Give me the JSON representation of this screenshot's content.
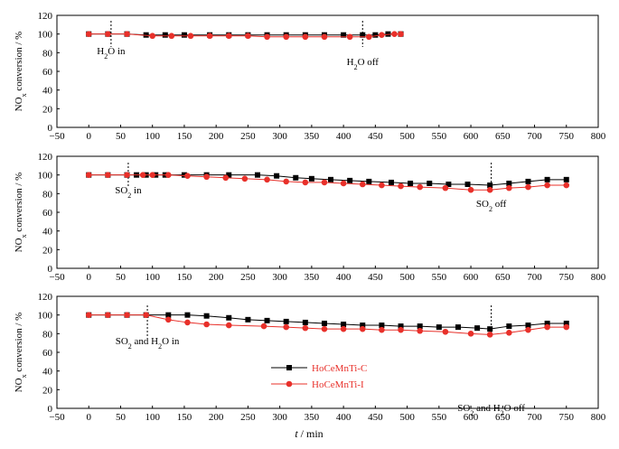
{
  "chart_data": [
    {
      "type": "line",
      "xlim": [
        -50,
        800
      ],
      "ylim": [
        0,
        120
      ],
      "xticks": [
        "−50",
        "0",
        "50",
        "100",
        "150",
        "200",
        "250",
        "300",
        "350",
        "400",
        "450",
        "500",
        "550",
        "600",
        "650",
        "700",
        "750",
        "800"
      ],
      "yticks": [
        "0",
        "20",
        "40",
        "60",
        "80",
        "100",
        "120"
      ],
      "ylabel": {
        "main": "NO",
        "sub": "x",
        "rest": " conversion / %"
      },
      "series": [
        {
          "name": "HoCeMnTi-C",
          "color": "#000000",
          "marker": "square",
          "x": [
            0,
            30,
            60,
            90,
            120,
            150,
            190,
            220,
            250,
            280,
            310,
            340,
            370,
            400,
            430,
            450,
            470,
            490
          ],
          "y": [
            100,
            100,
            100,
            99,
            99,
            99,
            99,
            99,
            99,
            99,
            99,
            99,
            99,
            99,
            99,
            99,
            100,
            100
          ]
        },
        {
          "name": "HoCeMnTi-I",
          "color": "#e8302a",
          "marker": "circle",
          "x": [
            0,
            30,
            60,
            100,
            130,
            160,
            190,
            220,
            250,
            280,
            310,
            340,
            370,
            410,
            440,
            460,
            480,
            490
          ],
          "y": [
            100,
            100,
            100,
            98,
            98,
            98,
            98,
            98,
            98,
            97,
            97,
            97,
            97,
            97,
            97,
            99,
            100,
            100
          ]
        }
      ],
      "annotations": [
        {
          "at_x": 35,
          "label_main": "H",
          "label_sub": "2",
          "label_rest": "O in"
        },
        {
          "at_x": 430,
          "label_main": "H",
          "label_sub": "2",
          "label_rest": "O off"
        }
      ]
    },
    {
      "type": "line",
      "xlim": [
        -50,
        800
      ],
      "ylim": [
        0,
        120
      ],
      "xticks": [
        "−50",
        "0",
        "50",
        "100",
        "150",
        "200",
        "250",
        "300",
        "350",
        "400",
        "450",
        "500",
        "550",
        "600",
        "650",
        "700",
        "750",
        "800"
      ],
      "yticks": [
        "0",
        "20",
        "40",
        "60",
        "80",
        "100",
        "120"
      ],
      "ylabel": {
        "main": "NO",
        "sub": "x",
        "rest": " conversion / %"
      },
      "series": [
        {
          "name": "HoCeMnTi-C",
          "color": "#000000",
          "marker": "square",
          "x": [
            0,
            30,
            60,
            75,
            90,
            105,
            120,
            150,
            185,
            220,
            265,
            295,
            325,
            350,
            380,
            410,
            440,
            475,
            505,
            535,
            565,
            595,
            630,
            660,
            690,
            720,
            750
          ],
          "y": [
            100,
            100,
            100,
            100,
            100,
            100,
            100,
            100,
            100,
            100,
            100,
            99,
            97,
            96,
            95,
            94,
            93,
            92,
            91,
            91,
            90,
            90,
            89,
            91,
            93,
            95,
            95
          ]
        },
        {
          "name": "HoCeMnTi-I",
          "color": "#e8302a",
          "marker": "circle",
          "x": [
            0,
            30,
            60,
            85,
            100,
            125,
            155,
            185,
            215,
            245,
            280,
            310,
            340,
            370,
            400,
            430,
            460,
            490,
            520,
            560,
            600,
            630,
            660,
            690,
            720,
            750
          ],
          "y": [
            100,
            100,
            100,
            100,
            100,
            100,
            99,
            98,
            97,
            96,
            95,
            93,
            92,
            92,
            91,
            90,
            89,
            88,
            87,
            86,
            84,
            84,
            86,
            87,
            89,
            89
          ]
        }
      ],
      "annotations": [
        {
          "at_x": 62,
          "label_main": "SO",
          "label_sub": "2",
          "label_rest": " in"
        },
        {
          "at_x": 632,
          "label_main": "SO",
          "label_sub": "2",
          "label_rest": " off"
        }
      ]
    },
    {
      "type": "line",
      "xlim": [
        -50,
        800
      ],
      "ylim": [
        0,
        120
      ],
      "xticks": [
        "−50",
        "0",
        "50",
        "100",
        "150",
        "200",
        "250",
        "300",
        "350",
        "400",
        "450",
        "500",
        "550",
        "600",
        "650",
        "700",
        "750",
        "800"
      ],
      "yticks": [
        "0",
        "20",
        "40",
        "60",
        "80",
        "100",
        "120"
      ],
      "ylabel": {
        "main": "NO",
        "sub": "x",
        "rest": " conversion / %"
      },
      "xlabel": {
        "italic": "t",
        "rest": " / min"
      },
      "series": [
        {
          "name": "HoCeMnTi-C",
          "color": "#000000",
          "marker": "square",
          "x": [
            0,
            30,
            60,
            90,
            125,
            155,
            185,
            220,
            250,
            280,
            310,
            340,
            370,
            400,
            430,
            460,
            490,
            520,
            550,
            580,
            610,
            630,
            660,
            690,
            720,
            750
          ],
          "y": [
            100,
            100,
            100,
            100,
            100,
            100,
            99,
            97,
            95,
            94,
            93,
            92,
            91,
            90,
            89,
            89,
            88,
            88,
            87,
            87,
            86,
            85,
            88,
            89,
            91,
            91
          ]
        },
        {
          "name": "HoCeMnTi-I",
          "color": "#e8302a",
          "marker": "circle",
          "x": [
            0,
            30,
            60,
            90,
            125,
            155,
            185,
            220,
            275,
            310,
            340,
            370,
            400,
            430,
            460,
            490,
            520,
            560,
            600,
            630,
            660,
            690,
            720,
            750
          ],
          "y": [
            100,
            100,
            100,
            100,
            95,
            92,
            90,
            89,
            88,
            87,
            86,
            85,
            85,
            85,
            84,
            84,
            83,
            82,
            80,
            79,
            81,
            84,
            87,
            87
          ]
        }
      ],
      "annotations": [
        {
          "at_x": 92,
          "label_main": "SO",
          "label_sub": "2",
          "label_rest": " and H",
          "label_sub2": "2",
          "label_rest2": "O in"
        },
        {
          "at_x": 632,
          "label_main": "SO",
          "label_sub": "2",
          "label_rest": " and H",
          "label_sub2": "2",
          "label_rest2": "O off"
        }
      ],
      "legend": [
        {
          "label": "HoCeMnTi-C",
          "color": "#000000",
          "marker": "square"
        },
        {
          "label": "HoCeMnTi-I",
          "color": "#e8302a",
          "marker": "circle"
        }
      ]
    }
  ]
}
